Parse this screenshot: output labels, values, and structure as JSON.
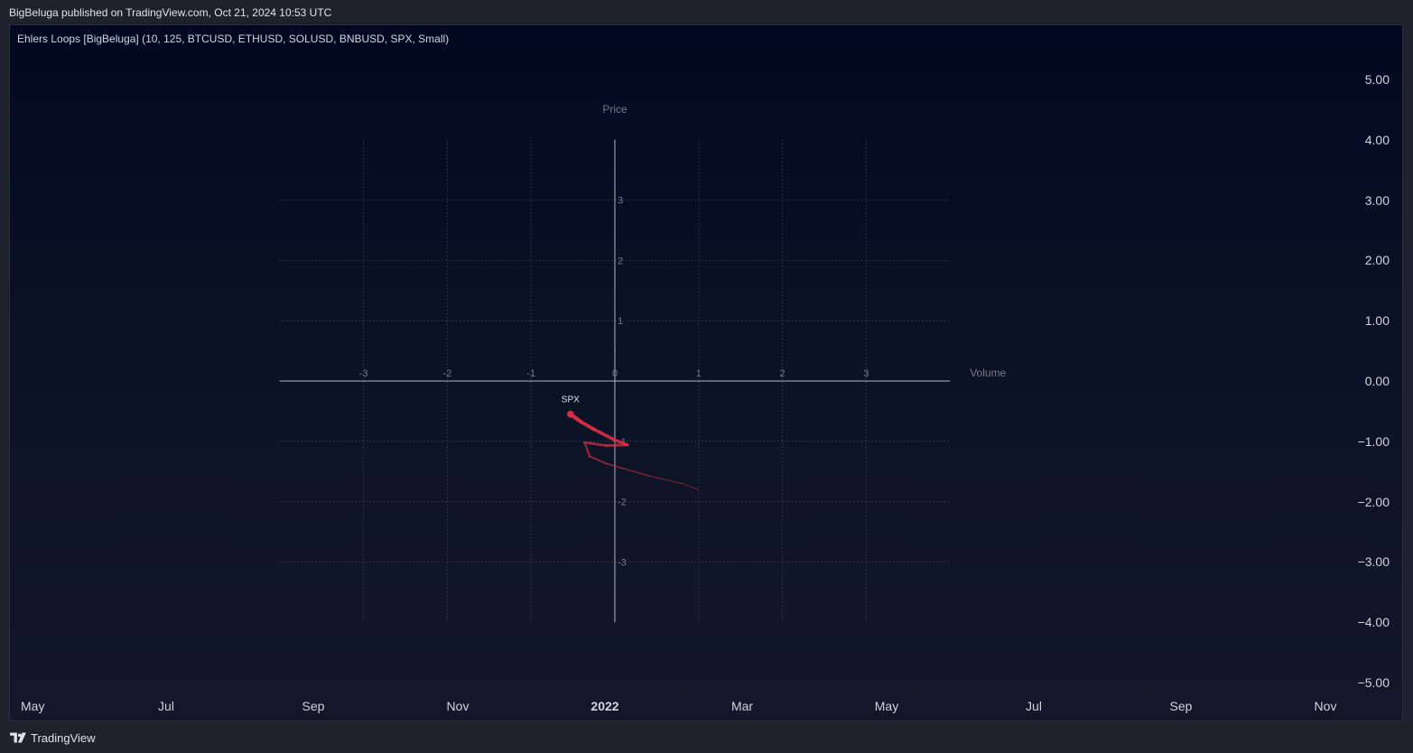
{
  "publisher_line": "BigBeluga published on TradingView.com, Oct 21, 2024 10:53 UTC",
  "indicator_title": "Ehlers Loops [BigBeluga] (10, 125, BTCUSD, ETHUSD, SOLUSD, BNBUSD, SPX, Small)",
  "footer": {
    "brand": "TradingView"
  },
  "price_axis": [
    "5.00",
    "4.00",
    "3.00",
    "2.00",
    "1.00",
    "0.00",
    "−1.00",
    "−2.00",
    "−3.00",
    "−4.00",
    "−5.00"
  ],
  "time_axis": [
    {
      "label": "May",
      "bold": false
    },
    {
      "label": "Jul",
      "bold": false
    },
    {
      "label": "Sep",
      "bold": false
    },
    {
      "label": "Nov",
      "bold": false
    },
    {
      "label": "2022",
      "bold": true
    },
    {
      "label": "Mar",
      "bold": false
    },
    {
      "label": "May",
      "bold": false
    },
    {
      "label": "Jul",
      "bold": false
    },
    {
      "label": "Sep",
      "bold": false
    },
    {
      "label": "Nov",
      "bold": false
    }
  ],
  "chart_data": {
    "type": "line",
    "xlabel": "Volume",
    "ylabel": "Price",
    "xlim": [
      -4,
      4
    ],
    "ylim": [
      -4,
      4
    ],
    "grid": true,
    "x_ticks": [
      "-3",
      "-2",
      "-1",
      "0",
      "1",
      "2",
      "3"
    ],
    "y_ticks": [
      "3",
      "2",
      "1",
      "-1",
      "-2",
      "-3"
    ],
    "series": [
      {
        "name": "SPX",
        "color": "#d32f45",
        "points": [
          [
            1.0,
            -1.8
          ],
          [
            0.8,
            -1.7
          ],
          [
            0.4,
            -1.57
          ],
          [
            0.1,
            -1.45
          ],
          [
            -0.1,
            -1.37
          ],
          [
            -0.3,
            -1.25
          ],
          [
            -0.36,
            -1.02
          ],
          [
            -0.3,
            -1.03
          ],
          [
            -0.1,
            -1.07
          ],
          [
            0.15,
            -1.06
          ],
          [
            0.1,
            -1.03
          ],
          [
            0.0,
            -0.98
          ],
          [
            -0.25,
            -0.8
          ],
          [
            -0.4,
            -0.68
          ],
          [
            -0.53,
            -0.55
          ]
        ]
      }
    ]
  }
}
